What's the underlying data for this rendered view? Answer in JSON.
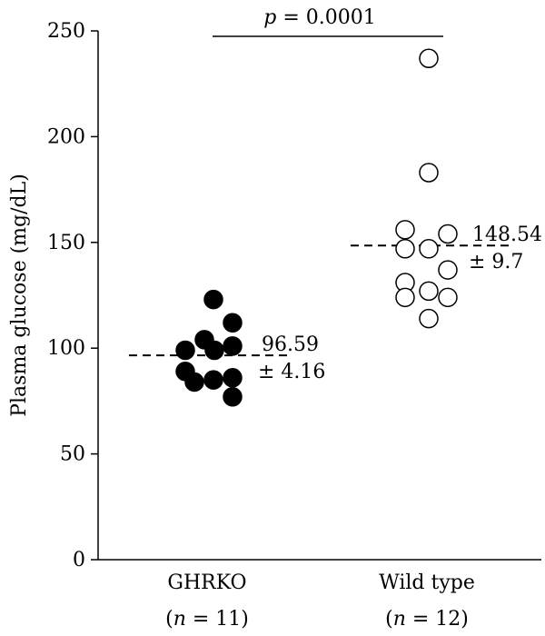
{
  "chart_data": {
    "type": "scatter",
    "ylabel": "Plasma glucose (mg/dL)",
    "ylim": [
      0,
      250
    ],
    "yticks": [
      0,
      50,
      100,
      150,
      200,
      250
    ],
    "groups": [
      {
        "name": "GHRKO",
        "n_label": "n",
        "n_value": "= 11)",
        "style": "filled",
        "mean": 96.59,
        "mean_label": "96.59",
        "sem_label": "± 4.16",
        "values": [
          123,
          104,
          112,
          99,
          99,
          101,
          89,
          84,
          85,
          86,
          77
        ]
      },
      {
        "name": "Wild type",
        "n_label": "n",
        "n_value": "= 12)",
        "style": "open",
        "mean": 148.54,
        "mean_label": "148.54",
        "sem_label": "± 9.7",
        "values": [
          237,
          183,
          156,
          147,
          147,
          154,
          131,
          137,
          124,
          127,
          124,
          114
        ]
      }
    ],
    "annotation": {
      "p_symbol": "p",
      "p_text": " = 0.0001"
    }
  }
}
